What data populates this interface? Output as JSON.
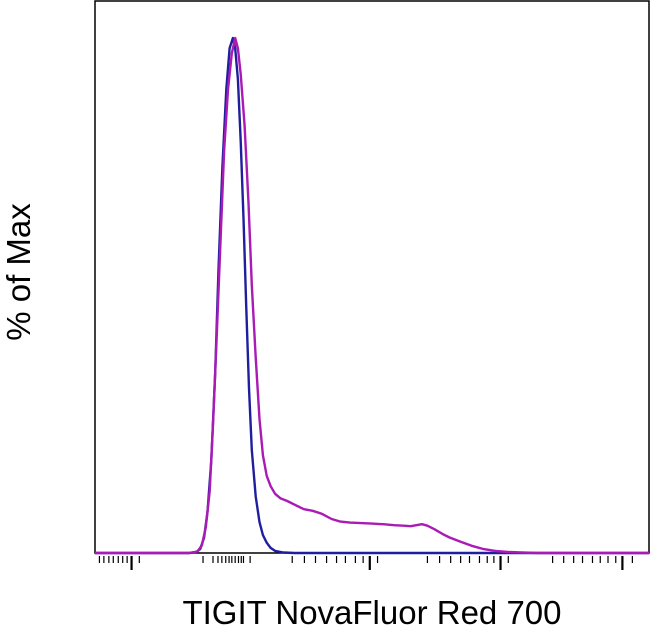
{
  "chart_data": {
    "type": "line",
    "title": "",
    "xlabel": "TIGIT NovaFluor Red 700",
    "ylabel": "% of Max",
    "xscale": "log",
    "xlim": [
      0,
      1
    ],
    "ylim": [
      0,
      100
    ],
    "grid": false,
    "legend": "none",
    "x_tick_labels": [],
    "y_tick_labels": [],
    "series": [
      {
        "color": "#1f1f9e",
        "points": [
          [
            0.0,
            0.0
          ],
          [
            0.17,
            0.0
          ],
          [
            0.183,
            0.2
          ],
          [
            0.19,
            0.8
          ],
          [
            0.197,
            3.0
          ],
          [
            0.203,
            8.0
          ],
          [
            0.21,
            18.0
          ],
          [
            0.217,
            35.0
          ],
          [
            0.223,
            55.0
          ],
          [
            0.23,
            75.0
          ],
          [
            0.237,
            90.0
          ],
          [
            0.243,
            98.0
          ],
          [
            0.249,
            100.0
          ],
          [
            0.253,
            98.0
          ],
          [
            0.258,
            92.0
          ],
          [
            0.263,
            80.0
          ],
          [
            0.268,
            65.0
          ],
          [
            0.273,
            48.0
          ],
          [
            0.278,
            32.0
          ],
          [
            0.283,
            20.0
          ],
          [
            0.29,
            11.0
          ],
          [
            0.297,
            6.0
          ],
          [
            0.303,
            3.5
          ],
          [
            0.31,
            2.0
          ],
          [
            0.317,
            1.0
          ],
          [
            0.325,
            0.4
          ],
          [
            0.34,
            0.1
          ],
          [
            0.36,
            0.0
          ],
          [
            1.0,
            0.0
          ]
        ]
      },
      {
        "color": "#a91bb4",
        "points": [
          [
            0.0,
            0.0
          ],
          [
            0.17,
            0.0
          ],
          [
            0.185,
            0.3
          ],
          [
            0.193,
            1.5
          ],
          [
            0.2,
            5.0
          ],
          [
            0.207,
            12.0
          ],
          [
            0.213,
            25.0
          ],
          [
            0.22,
            43.0
          ],
          [
            0.227,
            62.0
          ],
          [
            0.233,
            78.0
          ],
          [
            0.24,
            90.0
          ],
          [
            0.247,
            97.0
          ],
          [
            0.253,
            100.0
          ],
          [
            0.258,
            98.0
          ],
          [
            0.263,
            93.0
          ],
          [
            0.27,
            83.0
          ],
          [
            0.277,
            68.0
          ],
          [
            0.283,
            52.0
          ],
          [
            0.29,
            38.0
          ],
          [
            0.297,
            26.0
          ],
          [
            0.303,
            19.0
          ],
          [
            0.31,
            15.0
          ],
          [
            0.317,
            13.0
          ],
          [
            0.325,
            11.5
          ],
          [
            0.335,
            10.6
          ],
          [
            0.347,
            10.1
          ],
          [
            0.36,
            9.4
          ],
          [
            0.377,
            8.5
          ],
          [
            0.393,
            8.2
          ],
          [
            0.41,
            7.6
          ],
          [
            0.427,
            6.6
          ],
          [
            0.443,
            6.1
          ],
          [
            0.46,
            5.9
          ],
          [
            0.48,
            5.8
          ],
          [
            0.5,
            5.7
          ],
          [
            0.52,
            5.6
          ],
          [
            0.54,
            5.4
          ],
          [
            0.557,
            5.3
          ],
          [
            0.57,
            5.2
          ],
          [
            0.58,
            5.4
          ],
          [
            0.59,
            5.6
          ],
          [
            0.6,
            5.3
          ],
          [
            0.613,
            4.6
          ],
          [
            0.627,
            3.7
          ],
          [
            0.64,
            3.0
          ],
          [
            0.66,
            2.2
          ],
          [
            0.68,
            1.4
          ],
          [
            0.7,
            0.8
          ],
          [
            0.723,
            0.4
          ],
          [
            0.745,
            0.2
          ],
          [
            0.77,
            0.1
          ],
          [
            0.8,
            0.0
          ],
          [
            1.0,
            0.0
          ]
        ]
      }
    ],
    "x_ticks": [
      0.008,
      0.016,
      0.025,
      0.033,
      0.042,
      0.05,
      0.058,
      0.066,
      0.08,
      0.195,
      0.213,
      0.222,
      0.229,
      0.236,
      0.242,
      0.247,
      0.253,
      0.259,
      0.264,
      0.268,
      0.28,
      0.356,
      0.378,
      0.398,
      0.418,
      0.436,
      0.452,
      0.47,
      0.484,
      0.496,
      0.51,
      0.6,
      0.622,
      0.642,
      0.66,
      0.676,
      0.694,
      0.708,
      0.72,
      0.732,
      0.746,
      0.826,
      0.846,
      0.864,
      0.88,
      0.898,
      0.912,
      0.926,
      0.94,
      0.952,
      0.97
    ],
    "x_major_ticks": [
      0.066,
      0.241,
      0.496,
      0.732,
      0.952
    ]
  }
}
